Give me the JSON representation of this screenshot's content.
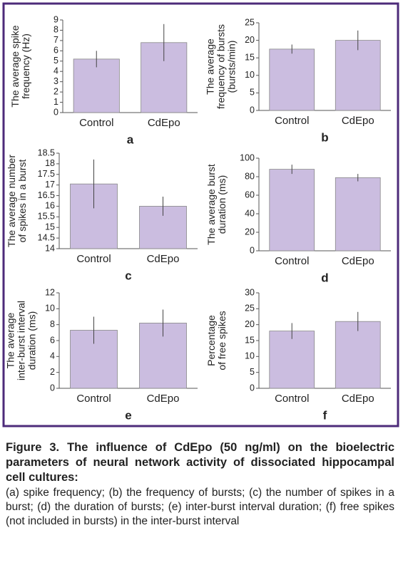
{
  "chart_data": [
    {
      "type": "bar",
      "label": "a",
      "ylabel": [
        "The average spike",
        "frequency (Hz)"
      ],
      "categories": [
        "Control",
        "CdEpo"
      ],
      "values": [
        5.2,
        6.8
      ],
      "errors": [
        0.8,
        1.8
      ],
      "color": "#cbbde0",
      "ylim": [
        0,
        9
      ],
      "yticks": [
        0,
        1,
        2,
        3,
        4,
        5,
        6,
        7,
        8,
        9
      ]
    },
    {
      "type": "bar",
      "label": "b",
      "ylabel": [
        "The average",
        "frequency of bursts",
        "(bursts/min)"
      ],
      "categories": [
        "Control",
        "CdEpo"
      ],
      "values": [
        17.5,
        20
      ],
      "errors": [
        1.3,
        2.8
      ],
      "color": "#cbbde0",
      "ylim": [
        0,
        25
      ],
      "yticks": [
        0,
        5,
        10,
        15,
        20,
        25
      ]
    },
    {
      "type": "bar",
      "label": "c",
      "ylabel": [
        "The average number",
        "of spikes in a burst"
      ],
      "categories": [
        "Control",
        "CdEpo"
      ],
      "values": [
        17.05,
        16
      ],
      "errors": [
        1.15,
        0.45
      ],
      "color": "#cbbde0",
      "ylim": [
        14,
        18.5
      ],
      "yticks": [
        14,
        14.5,
        15,
        15.5,
        16,
        16.5,
        17,
        17.5,
        18,
        18.5
      ]
    },
    {
      "type": "bar",
      "label": "d",
      "ylabel": [
        "The average burst",
        "duration (ms)"
      ],
      "categories": [
        "Control",
        "CdEpo"
      ],
      "values": [
        88,
        79
      ],
      "errors": [
        5,
        4
      ],
      "color": "#cbbde0",
      "ylim": [
        0,
        100
      ],
      "yticks": [
        0,
        20,
        40,
        60,
        80,
        100
      ]
    },
    {
      "type": "bar",
      "label": "e",
      "ylabel": [
        "The average",
        "inter-burst interval",
        "duration (ms)"
      ],
      "categories": [
        "Control",
        "CdEpo"
      ],
      "values": [
        7.3,
        8.2
      ],
      "errors": [
        1.7,
        1.7
      ],
      "color": "#cbbde0",
      "ylim": [
        0,
        12
      ],
      "yticks": [
        0,
        2,
        4,
        6,
        8,
        10,
        12
      ]
    },
    {
      "type": "bar",
      "label": "f",
      "ylabel": [
        "Percentage",
        "of free spikes"
      ],
      "categories": [
        "Control",
        "CdEpo"
      ],
      "values": [
        18,
        21
      ],
      "errors": [
        2.5,
        3
      ],
      "color": "#cbbde0",
      "ylim": [
        0,
        30
      ],
      "yticks": [
        0,
        5,
        10,
        15,
        20,
        25,
        30
      ]
    }
  ],
  "caption": {
    "title": "Figure 3. The influence of CdEpo (50 ng/ml) on the bioelectric parameters of neural network activity of dissociated hippocampal cell cultures:",
    "text": "(a) spike frequency; (b) the frequency of bursts; (c) the number of spikes in a burst; (d) the duration of bursts; (e) inter-burst interval duration; (f) free spikes (not included in bursts) in the inter-burst interval"
  }
}
